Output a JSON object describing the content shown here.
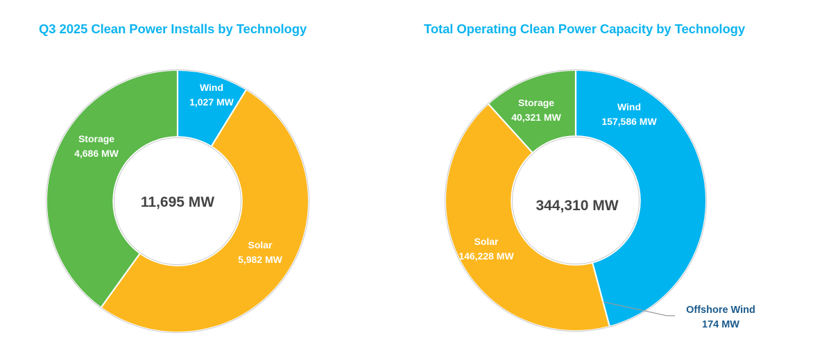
{
  "chart_data": [
    {
      "type": "pie",
      "variant": "donut",
      "title": "Q3 2025 Clean Power Installs by Technology",
      "unit": "MW",
      "center_label": "11,695 MW",
      "total": 11695,
      "start": "12 o'clock, clockwise",
      "slices": [
        {
          "name": "Wind",
          "value": 1027,
          "value_label": "1,027 MW",
          "color": "#00b4ef"
        },
        {
          "name": "Solar",
          "value": 5982,
          "value_label": "5,982 MW",
          "color": "#fcb71e"
        },
        {
          "name": "Storage",
          "value": 4686,
          "value_label": "4,686 MW",
          "color": "#5cb94a"
        }
      ]
    },
    {
      "type": "pie",
      "variant": "donut",
      "title": "Total Operating Clean Power Capacity by Technology",
      "unit": "MW",
      "center_label": "344,310 MW",
      "total": 344310,
      "start": "12 o'clock, clockwise",
      "slices": [
        {
          "name": "Wind",
          "value": 157586,
          "value_label": "157,586 MW",
          "color": "#00b4ef"
        },
        {
          "name": "Offshore Wind",
          "value": 174,
          "value_label": "174 MW",
          "color": "#00b4ef",
          "callout": true,
          "label_color": "#1a5a8c"
        },
        {
          "name": "Solar",
          "value": 146228,
          "value_label": "146,228 MW",
          "color": "#fcb71e"
        },
        {
          "name": "Storage",
          "value": 40321,
          "value_label": "40,321 MW",
          "color": "#5cb94a"
        }
      ]
    }
  ],
  "colors": {
    "title": "#0db4ef",
    "center_text": "#444444",
    "slice_text": "#ffffff",
    "outline": "#c8c8c8",
    "leader_line": "#9a9a9a"
  }
}
